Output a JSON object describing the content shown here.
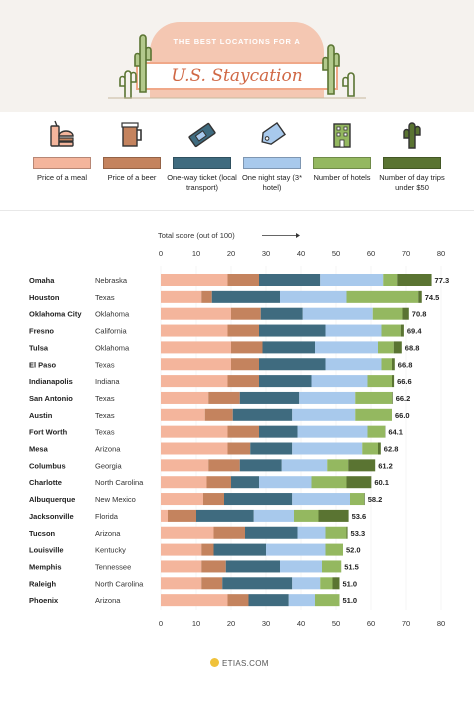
{
  "header": {
    "title_top": "THE BEST LOCATIONS FOR A",
    "title_main": "U.S. Staycation"
  },
  "legend": [
    {
      "label": "Price of a meal",
      "color": "#f4b59c",
      "icon": "burger-drink-icon"
    },
    {
      "label": "Price of a beer",
      "color": "#c4835e",
      "icon": "beer-mug-icon"
    },
    {
      "label": "One-way ticket (local transport)",
      "color": "#3f6b7f",
      "icon": "ticket-icon"
    },
    {
      "label": "One night stay (3* hotel)",
      "color": "#a8c9ec",
      "icon": "price-tag-icon"
    },
    {
      "label": "Number of hotels",
      "color": "#94b860",
      "icon": "hotel-building-icon"
    },
    {
      "label": "Number of day trips under $50",
      "color": "#5a7432",
      "icon": "cactus-icon"
    }
  ],
  "chart_data": {
    "type": "bar",
    "orientation": "horizontal",
    "stacked": true,
    "xlabel": "Total score (out of 100)",
    "xlim": [
      0,
      80
    ],
    "xticks": [
      0,
      10,
      20,
      30,
      40,
      50,
      60,
      70,
      80
    ],
    "series_names": [
      "Price of a meal",
      "Price of a beer",
      "One-way ticket (local transport)",
      "One night stay (3* hotel)",
      "Number of hotels",
      "Number of day trips under $50"
    ],
    "rows": [
      {
        "city": "Omaha",
        "state": "Nebraska",
        "total": "77.3",
        "segments": [
          19,
          9,
          17.5,
          18,
          4,
          9.8
        ]
      },
      {
        "city": "Houston",
        "state": "Texas",
        "total": "74.5",
        "segments": [
          11.5,
          3,
          19.5,
          19,
          20.5,
          1
        ]
      },
      {
        "city": "Oklahoma City",
        "state": "Oklahoma",
        "total": "70.8",
        "segments": [
          20,
          8.5,
          12,
          20,
          8.5,
          1.8
        ]
      },
      {
        "city": "Fresno",
        "state": "California",
        "total": "69.4",
        "segments": [
          19,
          9,
          19,
          16,
          5.5,
          0.9
        ]
      },
      {
        "city": "Tulsa",
        "state": "Oklahoma",
        "total": "68.8",
        "segments": [
          20,
          9,
          15,
          18,
          4.5,
          2.3
        ]
      },
      {
        "city": "El Paso",
        "state": "Texas",
        "total": "66.8",
        "segments": [
          20,
          8,
          19,
          16,
          3,
          0.8
        ]
      },
      {
        "city": "Indianapolis",
        "state": "Indiana",
        "total": "66.6",
        "segments": [
          19,
          9,
          15,
          16,
          7,
          0.6
        ]
      },
      {
        "city": "San Antonio",
        "state": "Texas",
        "total": "66.2",
        "segments": [
          13.5,
          9,
          17,
          16,
          10.5,
          0.2
        ]
      },
      {
        "city": "Austin",
        "state": "Texas",
        "total": "66.0",
        "segments": [
          12.5,
          8,
          17,
          18,
          10.5,
          0
        ]
      },
      {
        "city": "Fort Worth",
        "state": "Texas",
        "total": "64.1",
        "segments": [
          19,
          9,
          11,
          20,
          5,
          0.1
        ]
      },
      {
        "city": "Mesa",
        "state": "Arizona",
        "total": "62.8",
        "segments": [
          19,
          6.5,
          12,
          20,
          4.5,
          0.8
        ]
      },
      {
        "city": "Columbus",
        "state": "Georgia",
        "total": "61.2",
        "segments": [
          13.5,
          9,
          12,
          13,
          6,
          7.7
        ]
      },
      {
        "city": "Charlotte",
        "state": "North Carolina",
        "total": "60.1",
        "segments": [
          13,
          7,
          8,
          15,
          10,
          7.1
        ]
      },
      {
        "city": "Albuquerque",
        "state": "New Mexico",
        "total": "58.2",
        "segments": [
          12,
          6,
          19.5,
          16.5,
          4,
          0.2
        ]
      },
      {
        "city": "Jacksonville",
        "state": "Florida",
        "total": "53.6",
        "segments": [
          2,
          8,
          16.5,
          11.5,
          7,
          8.6
        ]
      },
      {
        "city": "Tucson",
        "state": "Arizona",
        "total": "53.3",
        "segments": [
          15,
          9,
          15,
          8,
          6,
          0.3
        ]
      },
      {
        "city": "Louisville",
        "state": "Kentucky",
        "total": "52.0",
        "segments": [
          11.5,
          3.5,
          15,
          17,
          5,
          0
        ]
      },
      {
        "city": "Memphis",
        "state": "Tennessee",
        "total": "51.5",
        "segments": [
          11.5,
          7,
          15.5,
          12,
          5.5,
          0
        ]
      },
      {
        "city": "Raleigh",
        "state": "North Carolina",
        "total": "51.0",
        "segments": [
          11.5,
          6,
          20,
          8,
          3.5,
          2
        ]
      },
      {
        "city": "Phoenix",
        "state": "Arizona",
        "total": "51.0",
        "segments": [
          19,
          6,
          11.5,
          7.5,
          7,
          0
        ]
      }
    ]
  },
  "footer": {
    "brand": "ETIAS.COM"
  }
}
